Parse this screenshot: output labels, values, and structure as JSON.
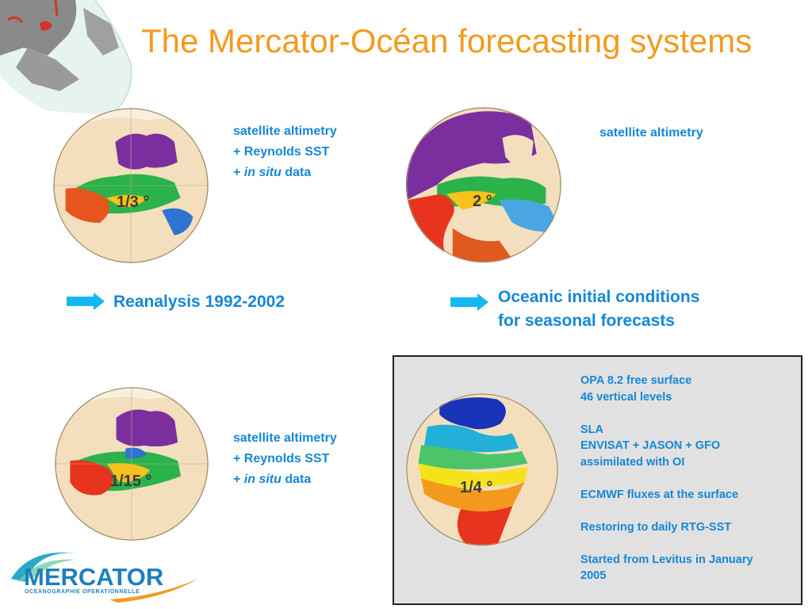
{
  "title": "The Mercator-Océan forecasting systems",
  "globes": [
    {
      "id": "one-third",
      "resolution_label": "1/3 °",
      "description_lines": [
        "satellite altimetry",
        "+ Reynolds SST",
        "+ in situ data"
      ]
    },
    {
      "id": "two-degree",
      "resolution_label": "2 °",
      "description_lines": [
        "satellite altimetry"
      ]
    },
    {
      "id": "one-fifteenth",
      "resolution_label": "1/15 °",
      "description_lines": [
        "satellite altimetry",
        "+ Reynolds SST",
        "+ in situ data"
      ]
    },
    {
      "id": "one-quarter",
      "resolution_label": "1/4 °"
    }
  ],
  "desc_parts": {
    "plus": "+ ",
    "in_situ": "in situ",
    "data_word": " data"
  },
  "arrows": {
    "reanalysis": "Reanalysis 1992-2002",
    "oceanic_line1": "Oceanic initial conditions",
    "oceanic_line2": "for seasonal forecasts"
  },
  "panel": {
    "lines": [
      "OPA 8.2 free surface",
      "46 vertical levels",
      "",
      "SLA",
      "ENVISAT + JASON + GFO",
      "assimilated with OI",
      "",
      "ECMWF fluxes at the surface",
      "",
      "Restoring to daily RTG-SST",
      "",
      "Started from Levitus in January",
      "2005"
    ]
  },
  "logo": {
    "name": "MERCATOR",
    "subtitle": "OCEANOGRAPHIE OPERATIONNELLE"
  },
  "colors": {
    "title": "#f39a1e",
    "accent_blue": "#1587d7",
    "arrow": "#12b8f0",
    "land": "#f3dfbd",
    "panel_bg": "#e1e1e1"
  }
}
